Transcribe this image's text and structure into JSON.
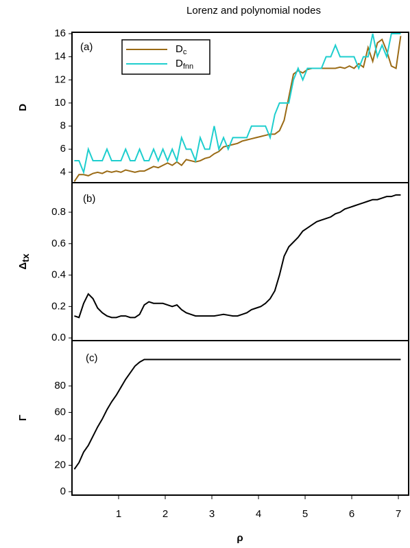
{
  "chart_data": [
    {
      "type": "line",
      "title": "Lorenz and polynomial nodes",
      "panel_label": "(a)",
      "ylabel": "D",
      "x": [
        0.05,
        0.15,
        0.25,
        0.35,
        0.45,
        0.55,
        0.65,
        0.75,
        0.85,
        0.95,
        1.05,
        1.15,
        1.25,
        1.35,
        1.45,
        1.55,
        1.65,
        1.75,
        1.85,
        1.95,
        2.05,
        2.15,
        2.25,
        2.35,
        2.45,
        2.55,
        2.65,
        2.75,
        2.85,
        2.95,
        3.05,
        3.15,
        3.25,
        3.35,
        3.45,
        3.55,
        3.65,
        3.75,
        3.85,
        3.95,
        4.05,
        4.15,
        4.25,
        4.35,
        4.45,
        4.55,
        4.65,
        4.75,
        4.85,
        4.95,
        5.05,
        5.15,
        5.25,
        5.35,
        5.45,
        5.55,
        5.65,
        5.75,
        5.85,
        5.95,
        6.05,
        6.15,
        6.25,
        6.35,
        6.45,
        6.55,
        6.65,
        6.75,
        6.85,
        6.95,
        7.05
      ],
      "series": [
        {
          "name": "Dc",
          "color": "#9a6a14",
          "values": [
            3.2,
            3.8,
            3.8,
            3.7,
            3.9,
            4.0,
            3.9,
            4.1,
            4.0,
            4.1,
            4.0,
            4.2,
            4.1,
            4.0,
            4.1,
            4.1,
            4.3,
            4.5,
            4.4,
            4.6,
            4.8,
            4.6,
            4.9,
            4.6,
            5.1,
            5.0,
            4.9,
            5.0,
            5.2,
            5.3,
            5.6,
            5.8,
            6.2,
            6.3,
            6.4,
            6.5,
            6.7,
            6.8,
            6.9,
            7.0,
            7.1,
            7.2,
            7.3,
            7.3,
            7.6,
            8.5,
            10.5,
            12.5,
            12.8,
            12.6,
            12.9,
            13.0,
            13.0,
            13.0,
            13.0,
            13.0,
            13.0,
            13.1,
            13.0,
            13.2,
            13.0,
            13.4,
            13.1,
            14.8,
            13.6,
            15.2,
            15.5,
            14.5,
            13.2,
            13.0,
            15.8
          ]
        },
        {
          "name": "Dfnn",
          "color": "#1ecece",
          "values": [
            5,
            5,
            4,
            6,
            5,
            5,
            5,
            6,
            5,
            5,
            5,
            6,
            5,
            5,
            6,
            5,
            5,
            6,
            5,
            6,
            5,
            6,
            5,
            7,
            6,
            6,
            5,
            7,
            6,
            6,
            8,
            6,
            7,
            6,
            7,
            7,
            7,
            7,
            8,
            8,
            8,
            8,
            7,
            9,
            10,
            10,
            10,
            12,
            13,
            12,
            13,
            13,
            13,
            13,
            14,
            14,
            15,
            14,
            14,
            14,
            14,
            13,
            14,
            14,
            16,
            14,
            15,
            14,
            16,
            16,
            16
          ]
        }
      ],
      "xlim": [
        0,
        7.22
      ],
      "ylim": [
        3.1,
        16.12
      ],
      "yticks": [
        4,
        6,
        8,
        10,
        12,
        14,
        16
      ],
      "legend": "upper left"
    },
    {
      "type": "line",
      "panel_label": "(b)",
      "ylabel": "Δtx",
      "x": [
        0.05,
        0.15,
        0.25,
        0.35,
        0.45,
        0.55,
        0.65,
        0.75,
        0.85,
        0.95,
        1.05,
        1.15,
        1.25,
        1.35,
        1.45,
        1.55,
        1.65,
        1.75,
        1.85,
        1.95,
        2.05,
        2.15,
        2.25,
        2.35,
        2.45,
        2.55,
        2.65,
        2.75,
        2.85,
        2.95,
        3.05,
        3.15,
        3.25,
        3.35,
        3.45,
        3.55,
        3.65,
        3.75,
        3.85,
        3.95,
        4.05,
        4.15,
        4.25,
        4.35,
        4.45,
        4.55,
        4.65,
        4.75,
        4.85,
        4.95,
        5.05,
        5.15,
        5.25,
        5.35,
        5.45,
        5.55,
        5.65,
        5.75,
        5.85,
        5.95,
        6.05,
        6.15,
        6.25,
        6.35,
        6.45,
        6.55,
        6.65,
        6.75,
        6.85,
        6.95,
        7.05
      ],
      "series": [
        {
          "color": "#000000",
          "values": [
            0.14,
            0.13,
            0.22,
            0.28,
            0.25,
            0.19,
            0.16,
            0.14,
            0.13,
            0.13,
            0.14,
            0.14,
            0.13,
            0.13,
            0.15,
            0.21,
            0.23,
            0.22,
            0.22,
            0.22,
            0.21,
            0.2,
            0.21,
            0.18,
            0.16,
            0.15,
            0.14,
            0.14,
            0.14,
            0.14,
            0.14,
            0.145,
            0.15,
            0.145,
            0.14,
            0.14,
            0.15,
            0.16,
            0.18,
            0.19,
            0.2,
            0.22,
            0.25,
            0.3,
            0.4,
            0.52,
            0.58,
            0.61,
            0.64,
            0.68,
            0.7,
            0.72,
            0.74,
            0.75,
            0.76,
            0.77,
            0.79,
            0.8,
            0.82,
            0.83,
            0.84,
            0.85,
            0.86,
            0.87,
            0.88,
            0.88,
            0.89,
            0.9,
            0.9,
            0.91,
            0.91
          ]
        }
      ],
      "xlim": [
        0,
        7.22
      ],
      "ylim": [
        -0.017,
        0.988
      ],
      "yticks": [
        {
          "value": 0,
          "label": "0.0"
        },
        0.2,
        0.4,
        0.6,
        0.8
      ]
    },
    {
      "type": "line",
      "panel_label": "(c)",
      "ylabel": "Γ",
      "xlabel": "ρ",
      "x": [
        0.05,
        0.15,
        0.25,
        0.35,
        0.45,
        0.55,
        0.65,
        0.75,
        0.85,
        0.95,
        1.05,
        1.15,
        1.25,
        1.35,
        1.45,
        1.55,
        1.65,
        1.75,
        1.85,
        1.95,
        2.05,
        2.15,
        2.25,
        2.35,
        2.45,
        2.55,
        2.65,
        2.75,
        2.85,
        2.95,
        3.05,
        3.15,
        3.25,
        3.35,
        3.45,
        3.55,
        3.65,
        3.75,
        3.85,
        3.95,
        4.05,
        4.15,
        4.25,
        4.35,
        4.45,
        4.55,
        4.65,
        4.75,
        4.85,
        4.95,
        5.05,
        5.15,
        5.25,
        5.35,
        5.45,
        5.55,
        5.65,
        5.75,
        5.85,
        5.95,
        6.05,
        6.15,
        6.25,
        6.35,
        6.45,
        6.55,
        6.65,
        6.75,
        6.85,
        6.95,
        7.05
      ],
      "series": [
        {
          "color": "#000000",
          "values": [
            17,
            22,
            30,
            35,
            42,
            49,
            55,
            62,
            68,
            73,
            79,
            85,
            90,
            95,
            98,
            100,
            100,
            100,
            100,
            100,
            100,
            100,
            100,
            100,
            100,
            100,
            100,
            100,
            100,
            100,
            100,
            100,
            100,
            100,
            100,
            100,
            100,
            100,
            100,
            100,
            100,
            100,
            100,
            100,
            100,
            100,
            100,
            100,
            100,
            100,
            100,
            100,
            100,
            100,
            100,
            100,
            100,
            100,
            100,
            100,
            100,
            100,
            100,
            100,
            100,
            100,
            100,
            100,
            100,
            100,
            100
          ]
        }
      ],
      "xlim": [
        0,
        7.22
      ],
      "ylim": [
        -2.6,
        114.3
      ],
      "yticks": [
        0,
        20,
        40,
        60,
        80
      ],
      "xticks": [
        1,
        2,
        3,
        4,
        5,
        6,
        7
      ]
    }
  ]
}
